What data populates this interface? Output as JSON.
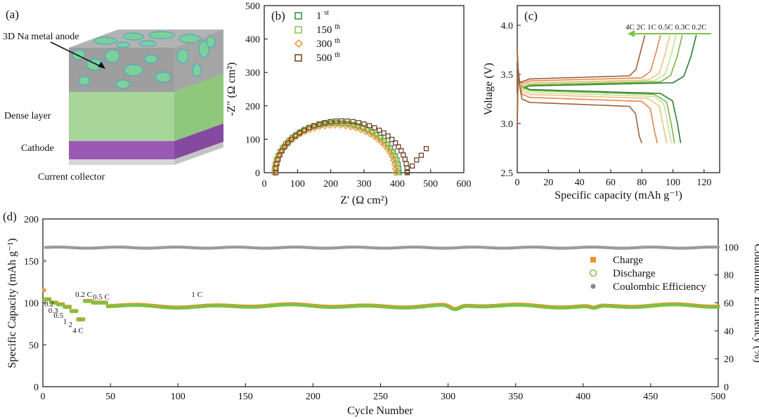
{
  "panel_a": {
    "label": "(a)",
    "layers": {
      "anode": "3D Na metal anode",
      "dense": "Dense layer",
      "cathode": "Cathode",
      "collector": "Current collector"
    },
    "colors": {
      "anode": "#a8a8a8",
      "anode_front": "#9a9a9a",
      "dense": "#a8d59a",
      "cathode": "#9b59b6",
      "na": "#6cc8a8"
    }
  },
  "chart_data": [
    {
      "id": "b",
      "type": "scatter",
      "label": "(b)",
      "xlabel": "Z' (Ω cm²)",
      "ylabel": "-Z\" (Ω cm²)",
      "xlim": [
        0,
        600
      ],
      "ylim": [
        0,
        500
      ],
      "xticks": [
        0,
        100,
        200,
        300,
        400,
        500,
        600
      ],
      "yticks": [
        0,
        100,
        200,
        300,
        400,
        500
      ],
      "legend_position": "top-left",
      "series": [
        {
          "name": "1",
          "sup": "st",
          "color": "#2e8b3a",
          "marker": "square",
          "r0": 30,
          "r1": 405,
          "peak": 148,
          "tail": []
        },
        {
          "name": "150",
          "sup": "th",
          "color": "#8bc34a",
          "marker": "square",
          "r0": 30,
          "r1": 400,
          "peak": 150,
          "tail": []
        },
        {
          "name": "300",
          "sup": "th",
          "color": "#f0922b",
          "marker": "diamond",
          "r0": 32,
          "r1": 395,
          "peak": 142,
          "tail": []
        },
        {
          "name": "500",
          "sup": "th",
          "color": "#6b4226",
          "marker": "square",
          "r0": 35,
          "r1": 430,
          "peak": 155,
          "tail": [
            [
              430,
              3
            ],
            [
              445,
              20
            ],
            [
              458,
              38
            ],
            [
              472,
              52
            ],
            [
              487,
              72
            ]
          ]
        }
      ]
    },
    {
      "id": "c",
      "type": "line",
      "label": "(c)",
      "xlabel": "Specific capacity (mAh g⁻¹)",
      "ylabel": "Voltage (V)",
      "xlim": [
        0,
        130
      ],
      "ylim": [
        2.5,
        4.2
      ],
      "xticks": [
        0,
        20,
        40,
        60,
        80,
        100,
        120
      ],
      "yticks": [
        2.5,
        3.0,
        3.5,
        4.0
      ],
      "rate_labels": "4C 2C 1C 0.5C 0.3C 0.2C",
      "series": [
        {
          "name": "0.2C",
          "color": "#2e7d32",
          "charge_end": 115,
          "discharge_end": 105,
          "vc": 3.38,
          "vd": 3.35
        },
        {
          "name": "0.3C",
          "color": "#7cb342",
          "charge_end": 106,
          "discharge_end": 101,
          "vc": 3.39,
          "vd": 3.34
        },
        {
          "name": "0.5C",
          "color": "#c5e1a5",
          "charge_end": 102,
          "discharge_end": 99,
          "vc": 3.4,
          "vd": 3.32
        },
        {
          "name": "1C",
          "color": "#f4c27a",
          "charge_end": 98,
          "discharge_end": 96,
          "vc": 3.41,
          "vd": 3.3
        },
        {
          "name": "2C",
          "color": "#e0874a",
          "charge_end": 92,
          "discharge_end": 90,
          "vc": 3.43,
          "vd": 3.27
        },
        {
          "name": "4C",
          "color": "#a0603a",
          "charge_end": 82,
          "discharge_end": 80,
          "vc": 3.45,
          "vd": 3.22
        }
      ]
    },
    {
      "id": "d",
      "type": "scatter",
      "label": "(d)",
      "xlabel": "Cycle Number",
      "ylabel": "Specific Capacity (mAh g⁻¹)",
      "y2label": "Coulombic Efficiency (%)",
      "xlim": [
        0,
        500
      ],
      "ylim": [
        0,
        200
      ],
      "y2lim": [
        0,
        120
      ],
      "xticks": [
        0,
        50,
        100,
        150,
        200,
        250,
        300,
        350,
        400,
        450,
        500
      ],
      "yticks": [
        0,
        50,
        100,
        150,
        200
      ],
      "y2ticks": [
        0,
        20,
        40,
        60,
        80,
        100
      ],
      "legend_position": "right",
      "legend": [
        {
          "name": "Charge",
          "color": "#f0922b",
          "marker": "square"
        },
        {
          "name": "Discharge",
          "color": "#7cc242",
          "marker": "circle"
        },
        {
          "name": "Coulombic Efficiency",
          "color": "#888888",
          "marker": "circle"
        }
      ],
      "rate_steps": [
        {
          "label": "0.2 C",
          "from": 1,
          "to": 5,
          "cap": 104
        },
        {
          "label": "0.3",
          "from": 6,
          "to": 10,
          "cap": 100
        },
        {
          "label": "0.5",
          "from": 11,
          "to": 15,
          "cap": 98
        },
        {
          "label": "1",
          "from": 16,
          "to": 20,
          "cap": 95
        },
        {
          "label": "2",
          "from": 21,
          "to": 25,
          "cap": 90
        },
        {
          "label": "4 C",
          "from": 26,
          "to": 30,
          "cap": 80
        },
        {
          "label": "0.2 C",
          "from": 25,
          "to": 36,
          "cap": 102
        },
        {
          "label": "0.5 C",
          "from": 37,
          "to": 47,
          "cap": 100
        },
        {
          "label": "1 C",
          "from": 48,
          "to": 500,
          "cap": 96
        }
      ],
      "annotations": [
        {
          "text": "0.2",
          "x": 1,
          "y": 96
        },
        {
          "text": "0.3",
          "x": 4,
          "y": 88
        },
        {
          "text": "0.5",
          "x": 8,
          "y": 82
        },
        {
          "text": "1",
          "x": 15,
          "y": 75
        },
        {
          "text": "2",
          "x": 19,
          "y": 71
        },
        {
          "text": "4 C",
          "x": 22,
          "y": 64
        },
        {
          "text": "0.2 C",
          "x": 24,
          "y": 107
        },
        {
          "text": "0.5 C",
          "x": 37,
          "y": 104
        },
        {
          "text": "1 C",
          "x": 110,
          "y": 107
        }
      ],
      "first_charge": 115,
      "ce_value": 99.5,
      "ce_first": 90
    }
  ]
}
